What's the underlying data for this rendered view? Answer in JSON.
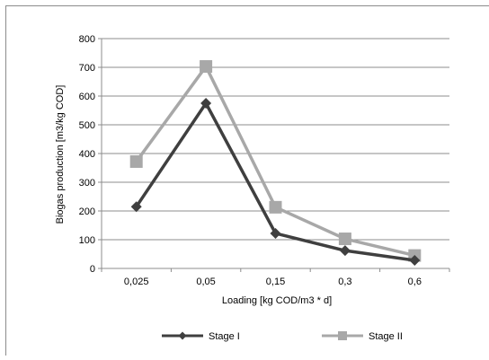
{
  "chart_data": {
    "type": "line",
    "title": "",
    "xlabel": "Loading [kg COD/m3 * d]",
    "ylabel": "Biogas production [m3/kg COD]",
    "categories": [
      "0,025",
      "0,05",
      "0,15",
      "0,3",
      "0,6"
    ],
    "ylim": [
      0,
      800
    ],
    "yticks": [
      0,
      100,
      200,
      300,
      400,
      500,
      600,
      700,
      800
    ],
    "grid": true,
    "legend_position": "bottom",
    "series": [
      {
        "name": "Stage I",
        "color": "#3f3f3f",
        "marker": "diamond",
        "values": [
          215,
          575,
          122,
          62,
          28
        ]
      },
      {
        "name": "Stage II",
        "color": "#a8a8a8",
        "marker": "square",
        "values": [
          372,
          703,
          213,
          103,
          45
        ]
      }
    ]
  }
}
